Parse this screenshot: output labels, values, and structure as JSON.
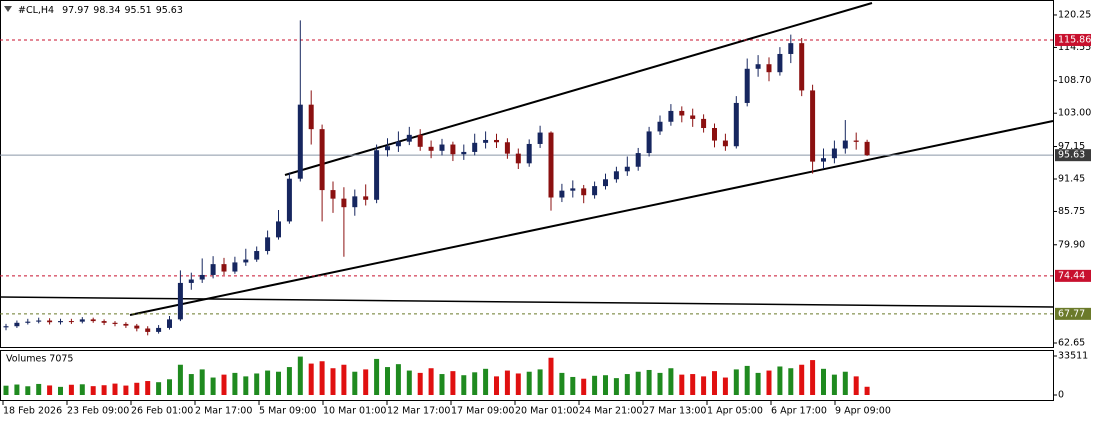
{
  "chart_data": [
    {
      "type": "candlestick",
      "title": "#CL,H4",
      "open": [
        65.4,
        65.6,
        66.2,
        66.4,
        66.6,
        66.3,
        66.5,
        66.4,
        66.8,
        66.5,
        66.2,
        66.0,
        65.7,
        65.2,
        64.6,
        65.3,
        66.8,
        73.2,
        73.8,
        74.6,
        76.5,
        75.2,
        76.8,
        77.3,
        78.8,
        81.2,
        84.0,
        91.5,
        104.5,
        100.2,
        89.5,
        88.0,
        86.5,
        88.4,
        87.8,
        96.5,
        97.2,
        98.0,
        99.2,
        97.1,
        96.4,
        97.5,
        95.8,
        96.2,
        97.8,
        98.3,
        97.9,
        95.9,
        94.2,
        97.6,
        99.6,
        88.2,
        89.4,
        89.8,
        88.6,
        90.2,
        91.4,
        92.8,
        93.6,
        96.0,
        99.8,
        101.5,
        103.4,
        102.6,
        102.0,
        100.4,
        98.2,
        97.2,
        104.8,
        110.8,
        111.6,
        110.2,
        113.4,
        115.3,
        107.0,
        94.5,
        95.1,
        96.8,
        98.2,
        97.97
      ],
      "high": [
        66.0,
        66.6,
        66.9,
        67.1,
        67.0,
        66.9,
        66.9,
        67.2,
        67.1,
        66.8,
        66.5,
        66.3,
        66.0,
        65.6,
        65.8,
        67.4,
        75.4,
        75.0,
        77.5,
        77.9,
        77.6,
        77.8,
        79.2,
        79.6,
        82.4,
        86.0,
        92.6,
        119.3,
        107.0,
        101.0,
        91.0,
        90.0,
        89.6,
        90.5,
        97.5,
        98.6,
        99.8,
        100.6,
        100.2,
        98.2,
        98.5,
        98.0,
        97.5,
        99.4,
        99.8,
        99.4,
        98.6,
        96.8,
        98.4,
        100.8,
        99.8,
        90.6,
        91.2,
        90.4,
        91.0,
        92.4,
        93.6,
        95.4,
        96.9,
        100.6,
        102.6,
        104.6,
        104.2,
        103.8,
        102.8,
        101.2,
        99.4,
        106.0,
        112.6,
        113.2,
        112.8,
        114.6,
        116.8,
        116.2,
        108.0,
        96.8,
        98.2,
        101.8,
        99.6,
        98.34
      ],
      "low": [
        64.9,
        65.3,
        65.9,
        66.1,
        65.9,
        65.9,
        66.0,
        66.1,
        66.2,
        65.8,
        65.6,
        65.3,
        64.7,
        64.0,
        64.3,
        65.0,
        66.5,
        72.0,
        73.2,
        74.0,
        74.6,
        74.8,
        76.2,
        76.9,
        78.2,
        80.8,
        83.6,
        91.0,
        97.5,
        84.0,
        85.5,
        77.8,
        85.0,
        86.8,
        87.2,
        95.4,
        96.2,
        97.4,
        96.4,
        95.1,
        95.6,
        94.6,
        94.8,
        95.6,
        96.8,
        96.9,
        95.0,
        93.2,
        93.6,
        96.9,
        85.9,
        87.4,
        88.2,
        87.2,
        88.0,
        89.6,
        90.8,
        92.0,
        92.9,
        95.4,
        99.2,
        100.8,
        101.4,
        100.6,
        99.6,
        97.0,
        96.4,
        96.8,
        104.2,
        109.4,
        108.6,
        109.6,
        111.8,
        106.0,
        92.4,
        93.2,
        94.2,
        95.9,
        96.6,
        95.51
      ],
      "close": [
        65.6,
        66.2,
        66.4,
        66.6,
        66.3,
        66.5,
        66.4,
        66.8,
        66.5,
        66.2,
        66.0,
        65.7,
        65.2,
        64.6,
        65.3,
        66.8,
        73.2,
        73.8,
        74.6,
        76.5,
        75.2,
        76.8,
        77.3,
        78.8,
        81.2,
        84.0,
        91.5,
        104.5,
        100.2,
        89.5,
        88.0,
        86.5,
        88.4,
        87.8,
        96.5,
        97.2,
        98.0,
        99.2,
        97.1,
        96.4,
        97.5,
        95.8,
        96.2,
        97.8,
        98.3,
        97.9,
        95.9,
        94.2,
        97.6,
        99.6,
        88.2,
        89.4,
        89.8,
        88.6,
        90.2,
        91.4,
        92.8,
        93.6,
        96.0,
        99.8,
        101.5,
        103.4,
        102.6,
        102.0,
        100.4,
        98.2,
        97.2,
        104.8,
        110.8,
        111.6,
        110.2,
        113.4,
        115.3,
        107.0,
        94.5,
        95.1,
        96.8,
        98.2,
        97.97,
        95.63
      ],
      "xtick_labels": [
        "18 Feb 2026",
        "23 Feb 09:00",
        "26 Feb 01:00",
        "2 Mar 17:00",
        "5 Mar 09:00",
        "10 Mar 01:00",
        "12 Mar 17:00",
        "17 Mar 09:00",
        "20 Mar 01:00",
        "24 Mar 21:00",
        "27 Mar 13:00",
        "1 Apr 05:00",
        "6 Apr 17:00",
        "9 Apr 09:00"
      ],
      "ylim": [
        61.95,
        122.35
      ],
      "yticks": [
        120.25,
        114.55,
        {
          "value": 108.7,
          "label": "108.70"
        },
        {
          "value": 103,
          "label": "103.00"
        },
        97.15,
        91.45,
        85.75,
        {
          "value": 79.9,
          "label": "79.90"
        },
        62.65
      ],
      "hlines": [
        {
          "value": 115.86,
          "color": "#c8102e"
        },
        {
          "value": 74.44,
          "color": "#c8102e"
        },
        {
          "value": 67.77,
          "color": "#6b7a2a"
        }
      ],
      "up_color": "#16265f",
      "down_color": "#8b1010",
      "last_price_color": "#3b3b3b"
    },
    {
      "type": "bar",
      "title": "Volumes 7075",
      "values": [
        8000,
        9000,
        7500,
        9500,
        8200,
        7000,
        8800,
        9200,
        7600,
        8400,
        9800,
        8100,
        10500,
        12000,
        11000,
        13500,
        26000,
        18000,
        22000,
        15000,
        17500,
        19000,
        16000,
        18500,
        21000,
        20000,
        24000,
        33000,
        27000,
        29000,
        23000,
        26000,
        20000,
        22000,
        31000,
        24000,
        26500,
        21000,
        19000,
        23000,
        18000,
        20500,
        17000,
        19500,
        22500,
        16000,
        21000,
        18500,
        20000,
        22000,
        32000,
        19000,
        15500,
        14000,
        16500,
        17000,
        14500,
        18000,
        20000,
        21500,
        19000,
        23000,
        17500,
        18000,
        16000,
        20500,
        15000,
        22000,
        25000,
        19000,
        21000,
        24500,
        23000,
        26000,
        30000,
        22500,
        17500,
        20000,
        16000,
        7075
      ],
      "ylim": [
        0,
        33511
      ],
      "yticks": [
        33511,
        0
      ],
      "up_color": "#1f8a1f",
      "down_color": "#e01010"
    }
  ]
}
